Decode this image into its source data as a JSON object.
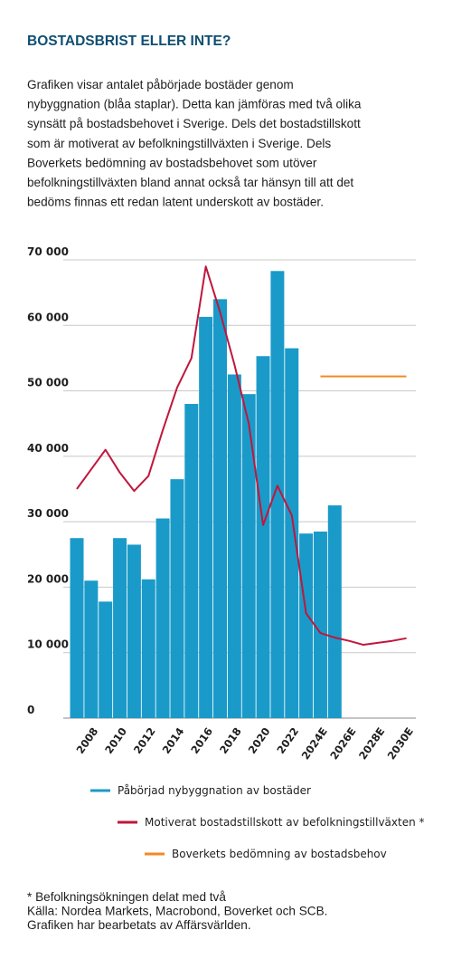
{
  "title": "BOSTADSBRIST ELLER INTE?",
  "paragraph": [
    "Grafiken visar antalet påbörjade bostäder genom",
    "nybyggnation (blåa staplar). Detta kan jämföras med två olika",
    "synsätt på bostadsbehovet i Sverige. Dels det bostadstillskott",
    "som är motiverat av befolkningstillväxten i Sverige. Dels",
    "Boverkets bedömning av bostadsbehovet som utöver",
    "befolkningstillväxten bland annat också tar hänsyn till att det",
    "bedöms finnas ett redan latent underskott av bostäder."
  ],
  "chart_data": {
    "type": "bar",
    "categories": [
      null,
      "2008",
      null,
      "2010",
      null,
      "2012",
      null,
      "2014",
      null,
      "2016",
      null,
      "2018",
      null,
      "2020",
      null,
      "2022",
      null,
      "2024E",
      null,
      "2026E",
      null,
      "2028E",
      null,
      "2030E"
    ],
    "ylim": [
      0,
      70000
    ],
    "yticks": [
      0,
      {
        "value": 10000,
        "label": "10 000"
      },
      {
        "value": 20000,
        "label": "20 000"
      },
      {
        "value": 30000,
        "label": "30 000"
      },
      {
        "value": 40000,
        "label": "40 000"
      },
      {
        "value": 50000,
        "label": "50 000"
      },
      {
        "value": 60000,
        "label": "60 000"
      },
      {
        "value": 70000,
        "label": "70 000"
      }
    ],
    "grid": true,
    "series": [
      {
        "name": "Påbörjad nybyggnation av bostäder",
        "color": "#1a9ac9",
        "type": "bar",
        "values": [
          27500,
          21000,
          17800,
          27500,
          26500,
          21200,
          30500,
          36500,
          48000,
          61300,
          64000,
          52500,
          49500,
          55300,
          68300,
          56500,
          28200,
          28500,
          32500,
          null,
          null,
          null,
          null,
          null
        ]
      },
      {
        "name": "Motiverat bostadstillskott av befolkningstillväxten *",
        "color": "#c0163c",
        "type": "line",
        "values": [
          35000,
          38000,
          41000,
          37500,
          34700,
          37000,
          44000,
          50500,
          55000,
          69000,
          62000,
          54000,
          45000,
          29500,
          35500,
          31000,
          16000,
          13000,
          12300,
          11800,
          11200,
          11500,
          11800,
          12200
        ]
      },
      {
        "name": "Boverkets bedömning av bostadsbehov",
        "color": "#f08a24",
        "type": "line",
        "values": [
          null,
          null,
          null,
          null,
          null,
          null,
          null,
          null,
          null,
          null,
          null,
          null,
          null,
          null,
          null,
          null,
          null,
          52200,
          52200,
          52200,
          52200,
          52200,
          52200,
          52200
        ]
      }
    ]
  },
  "footnote": [
    "* Befolkningsökningen delat med två",
    "Källa: Nordea Markets, Macrobond, Boverket och SCB.",
    "Grafiken har bearbetats av Affärsvärlden."
  ]
}
